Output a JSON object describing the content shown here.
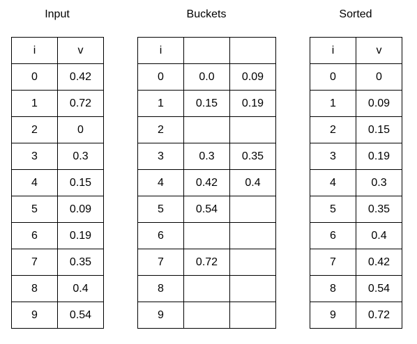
{
  "input": {
    "title": "Input",
    "header": [
      "i",
      "v"
    ],
    "rows": [
      [
        "0",
        "0.42"
      ],
      [
        "1",
        "0.72"
      ],
      [
        "2",
        "0"
      ],
      [
        "3",
        "0.3"
      ],
      [
        "4",
        "0.15"
      ],
      [
        "5",
        "0.09"
      ],
      [
        "6",
        "0.19"
      ],
      [
        "7",
        "0.35"
      ],
      [
        "8",
        "0.4"
      ],
      [
        "9",
        "0.54"
      ]
    ]
  },
  "buckets": {
    "title": "Buckets",
    "header": [
      "i",
      "",
      ""
    ],
    "rows": [
      [
        "0",
        "0.0",
        "0.09"
      ],
      [
        "1",
        "0.15",
        "0.19"
      ],
      [
        "2",
        "",
        ""
      ],
      [
        "3",
        "0.3",
        "0.35"
      ],
      [
        "4",
        "0.42",
        "0.4"
      ],
      [
        "5",
        "0.54",
        ""
      ],
      [
        "6",
        "",
        ""
      ],
      [
        "7",
        "0.72",
        ""
      ],
      [
        "8",
        "",
        ""
      ],
      [
        "9",
        "",
        ""
      ]
    ]
  },
  "sorted": {
    "title": "Sorted",
    "header": [
      "i",
      "v"
    ],
    "rows": [
      [
        "0",
        "0"
      ],
      [
        "1",
        "0.09"
      ],
      [
        "2",
        "0.15"
      ],
      [
        "3",
        "0.19"
      ],
      [
        "4",
        "0.3"
      ],
      [
        "5",
        "0.35"
      ],
      [
        "6",
        "0.4"
      ],
      [
        "7",
        "0.42"
      ],
      [
        "8",
        "0.54"
      ],
      [
        "9",
        "0.72"
      ]
    ]
  }
}
